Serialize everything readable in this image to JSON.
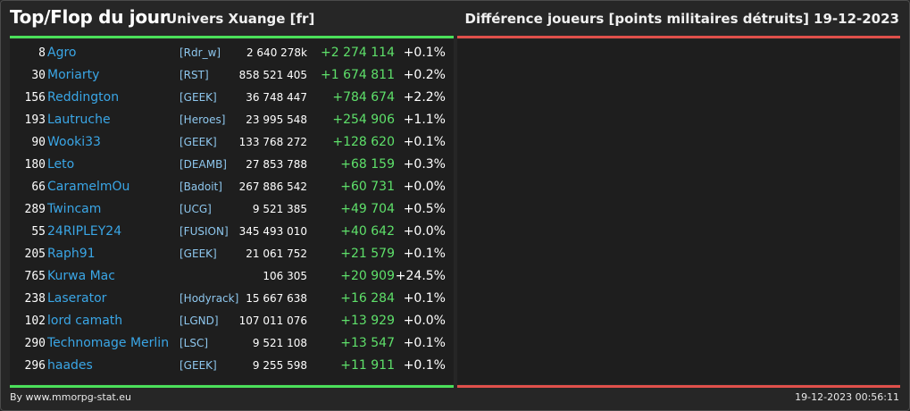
{
  "header": {
    "title": "Top/Flop du jour",
    "universe": "Univers Xuange [fr]",
    "metric": "Différence joueurs [points militaires détruits]",
    "date": "19-12-2023"
  },
  "colors": {
    "top_accent": "#4be05a",
    "flop_accent": "#e0504b",
    "player_link": "#3aa6e6",
    "alliance_link": "#8ec7ee",
    "positive_diff": "#5ee06a"
  },
  "top": [
    {
      "rank": "8",
      "name": "Agro",
      "alliance": "[Rdr_w]",
      "points": "2 640 278k",
      "diff": "+2 274 114",
      "pct": "+0.1%"
    },
    {
      "rank": "30",
      "name": "Moriarty",
      "alliance": "[RST]",
      "points": "858 521 405",
      "diff": "+1 674 811",
      "pct": "+0.2%"
    },
    {
      "rank": "156",
      "name": "Reddington",
      "alliance": "[GEEK]",
      "points": "36 748 447",
      "diff": "+784 674",
      "pct": "+2.2%"
    },
    {
      "rank": "193",
      "name": "Lautruche",
      "alliance": "[Heroes]",
      "points": "23 995 548",
      "diff": "+254 906",
      "pct": "+1.1%"
    },
    {
      "rank": "90",
      "name": "Wooki33",
      "alliance": "[GEEK]",
      "points": "133 768 272",
      "diff": "+128 620",
      "pct": "+0.1%"
    },
    {
      "rank": "180",
      "name": "Leto",
      "alliance": "[DEAMB]",
      "points": "27 853 788",
      "diff": "+68 159",
      "pct": "+0.3%"
    },
    {
      "rank": "66",
      "name": "CaramelmOu",
      "alliance": "[Badoit]",
      "points": "267 886 542",
      "diff": "+60 731",
      "pct": "+0.0%"
    },
    {
      "rank": "289",
      "name": "Twincam",
      "alliance": "[UCG]",
      "points": "9 521 385",
      "diff": "+49 704",
      "pct": "+0.5%"
    },
    {
      "rank": "55",
      "name": "24RIPLEY24",
      "alliance": "[FUSION]",
      "points": "345 493 010",
      "diff": "+40 642",
      "pct": "+0.0%"
    },
    {
      "rank": "205",
      "name": "Raph91",
      "alliance": "[GEEK]",
      "points": "21 061 752",
      "diff": "+21 579",
      "pct": "+0.1%"
    },
    {
      "rank": "765",
      "name": "Kurwa Mac",
      "alliance": "",
      "points": "106 305",
      "diff": "+20 909",
      "pct": "+24.5%"
    },
    {
      "rank": "238",
      "name": "Laserator",
      "alliance": "[Hodyrack]",
      "points": "15 667 638",
      "diff": "+16 284",
      "pct": "+0.1%"
    },
    {
      "rank": "102",
      "name": "lord camath",
      "alliance": "[LGND]",
      "points": "107 011 076",
      "diff": "+13 929",
      "pct": "+0.0%"
    },
    {
      "rank": "290",
      "name": "Technomage Merlin",
      "alliance": "[LSC]",
      "points": "9 521 108",
      "diff": "+13 547",
      "pct": "+0.1%"
    },
    {
      "rank": "296",
      "name": "haades",
      "alliance": "[GEEK]",
      "points": "9 255 598",
      "diff": "+11 911",
      "pct": "+0.1%"
    }
  ],
  "footer": {
    "credit": "By www.mmorpg-stat.eu",
    "timestamp": "19-12-2023 00:56:11"
  }
}
